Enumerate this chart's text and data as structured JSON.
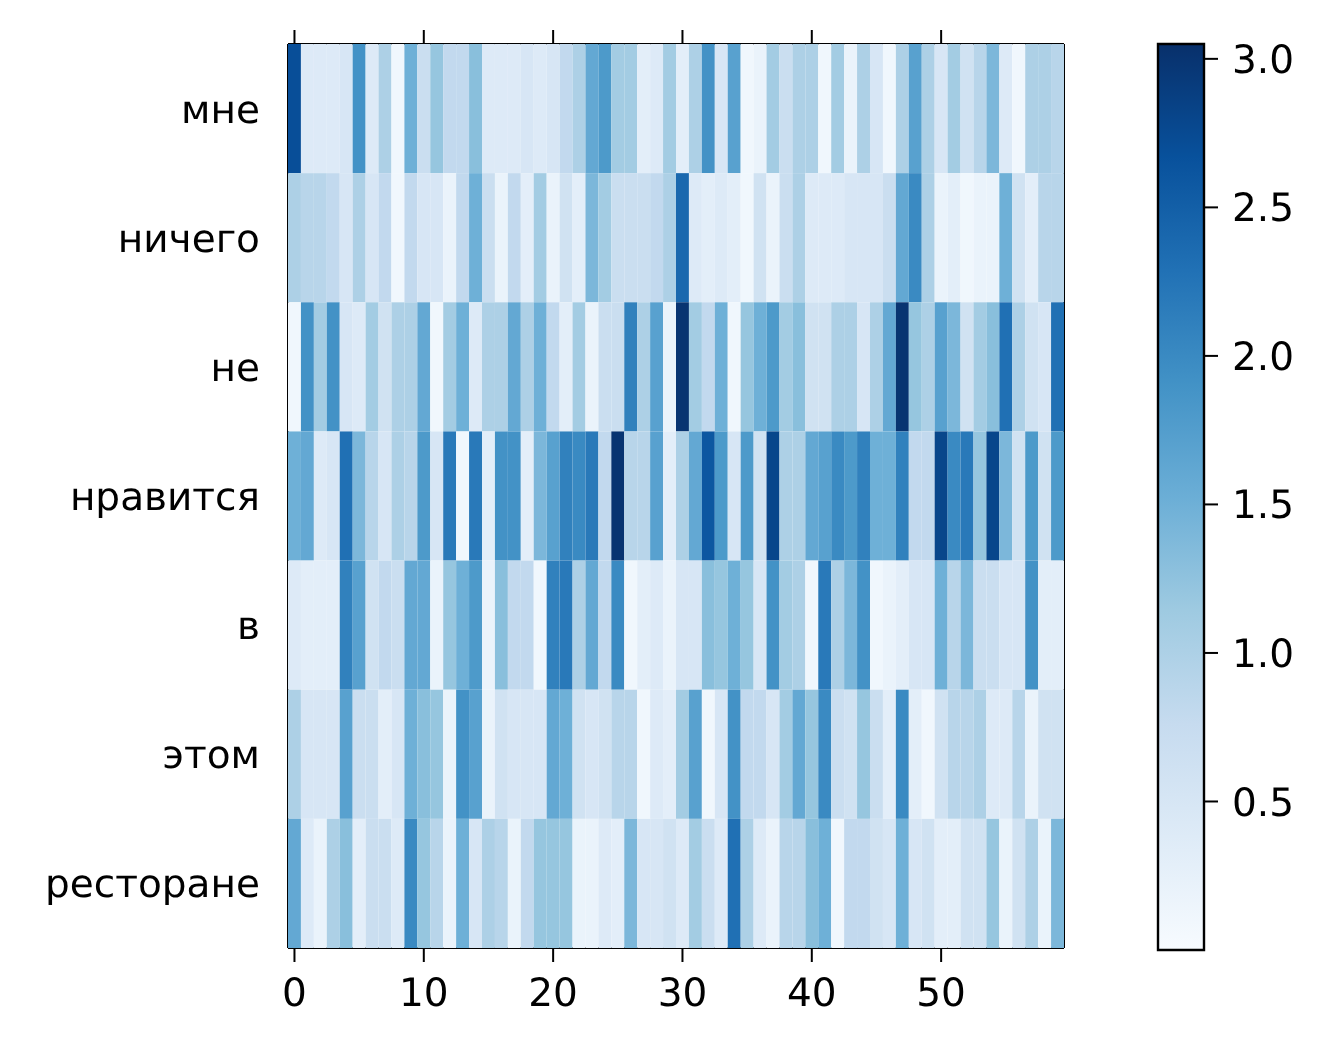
{
  "chart_data": {
    "type": "heatmap",
    "x": [
      0,
      1,
      2,
      3,
      4,
      5,
      6,
      7,
      8,
      9,
      10,
      11,
      12,
      13,
      14,
      15,
      16,
      17,
      18,
      19,
      20,
      21,
      22,
      23,
      24,
      25,
      26,
      27,
      28,
      29,
      30,
      31,
      32,
      33,
      34,
      35,
      36,
      37,
      38,
      39,
      40,
      41,
      42,
      43,
      44,
      45,
      46,
      47,
      48,
      49,
      50,
      51,
      52,
      53,
      54,
      55,
      56,
      57,
      58,
      59
    ],
    "xlim": [
      -0.5,
      59.5
    ],
    "xticks": [
      0,
      10,
      20,
      30,
      40,
      50
    ],
    "y_categories": [
      "мне",
      "ничего",
      "не",
      "нравится",
      "в",
      "этом",
      "ресторане"
    ],
    "cells": [
      [
        2.7,
        0.4,
        0.4,
        0.4,
        0.5,
        1.9,
        0.4,
        1.0,
        0.1,
        1.5,
        0.7,
        1.2,
        0.8,
        0.8,
        1.3,
        0.4,
        0.4,
        0.4,
        0.5,
        0.4,
        0.5,
        0.8,
        1.0,
        1.6,
        1.8,
        1.1,
        1.1,
        0.3,
        0.4,
        1.1,
        0.3,
        1.0,
        1.9,
        0.5,
        1.7,
        0.1,
        0.2,
        1.1,
        0.7,
        1.0,
        1.0,
        0.1,
        1.1,
        0.2,
        1.0,
        0.5,
        0.1,
        1.0,
        1.7,
        1.0,
        0.5,
        1.1,
        0.6,
        0.9,
        1.4,
        0.4,
        0.1,
        1.0,
        1.0,
        0.9
      ],
      [
        1.0,
        0.9,
        0.9,
        0.8,
        0.5,
        1.0,
        0.5,
        0.8,
        0.1,
        0.8,
        0.5,
        0.5,
        0.2,
        0.8,
        1.5,
        0.7,
        0.2,
        0.8,
        0.3,
        1.1,
        0.2,
        0.6,
        0.3,
        1.4,
        1.1,
        0.7,
        0.7,
        0.7,
        0.8,
        1.0,
        2.4,
        0.4,
        0.3,
        0.4,
        0.3,
        0.1,
        0.6,
        0.2,
        0.7,
        1.0,
        0.4,
        0.4,
        0.4,
        0.5,
        0.5,
        0.5,
        0.7,
        1.6,
        2.0,
        1.0,
        0.2,
        0.3,
        0.1,
        0.2,
        0.2,
        1.5,
        0.6,
        0.3,
        0.9,
        0.9
      ],
      [
        0.1,
        1.9,
        1.1,
        1.9,
        0.5,
        0.4,
        1.1,
        0.6,
        1.0,
        1.0,
        1.6,
        0.1,
        1.1,
        1.5,
        0.4,
        1.0,
        1.0,
        1.6,
        1.0,
        1.5,
        0.8,
        0.3,
        1.1,
        0.2,
        0.7,
        0.7,
        2.1,
        1.0,
        1.7,
        0.2,
        3.0,
        1.1,
        0.8,
        1.5,
        0.1,
        1.2,
        1.5,
        1.8,
        1.1,
        1.3,
        0.6,
        0.6,
        1.0,
        1.0,
        0.5,
        1.0,
        1.6,
        3.0,
        1.2,
        1.0,
        1.7,
        1.4,
        0.6,
        1.1,
        1.3,
        2.3,
        1.0,
        0.6,
        0.5,
        2.3
      ],
      [
        1.5,
        1.6,
        0.4,
        0.5,
        2.3,
        1.4,
        0.9,
        0.5,
        1.0,
        0.9,
        1.8,
        0.5,
        2.2,
        0.1,
        2.2,
        0.3,
        1.9,
        1.9,
        0.3,
        1.4,
        1.7,
        2.1,
        2.0,
        2.2,
        0.8,
        3.0,
        0.9,
        0.9,
        1.7,
        0.3,
        1.0,
        1.6,
        2.6,
        1.8,
        0.5,
        1.8,
        0.6,
        2.8,
        1.0,
        1.0,
        1.6,
        1.7,
        2.0,
        1.8,
        2.1,
        1.5,
        1.5,
        2.1,
        0.8,
        0.8,
        2.8,
        2.0,
        2.2,
        1.2,
        2.8,
        1.4,
        0.6,
        1.8,
        0.6,
        1.8
      ],
      [
        0.4,
        0.3,
        0.3,
        0.3,
        2.1,
        1.7,
        0.6,
        0.8,
        0.7,
        1.6,
        1.6,
        0.2,
        1.2,
        1.5,
        1.8,
        0.2,
        1.3,
        0.8,
        0.8,
        0.1,
        2.1,
        2.2,
        1.0,
        1.6,
        0.8,
        2.0,
        0.1,
        0.3,
        0.4,
        0.2,
        0.5,
        0.5,
        1.3,
        1.2,
        1.5,
        1.2,
        0.5,
        1.9,
        1.1,
        1.0,
        0.1,
        2.2,
        1.0,
        1.4,
        1.9,
        0.1,
        0.2,
        0.3,
        0.5,
        0.5,
        1.5,
        0.9,
        1.4,
        0.7,
        0.7,
        0.5,
        0.5,
        1.9,
        0.3,
        0.3
      ],
      [
        1.0,
        0.5,
        0.5,
        0.5,
        1.7,
        0.7,
        0.7,
        0.3,
        0.5,
        1.5,
        1.3,
        1.2,
        0.2,
        1.9,
        1.7,
        0.2,
        0.6,
        0.5,
        0.5,
        0.5,
        1.6,
        1.5,
        0.6,
        0.5,
        0.6,
        0.9,
        0.9,
        0.1,
        0.4,
        0.3,
        1.1,
        1.7,
        0.1,
        0.5,
        1.9,
        0.8,
        0.8,
        0.5,
        1.1,
        1.6,
        1.2,
        2.0,
        0.7,
        0.6,
        1.2,
        0.7,
        0.3,
        2.0,
        0.3,
        0.1,
        0.6,
        0.9,
        0.9,
        1.0,
        0.4,
        0.4,
        0.9,
        0.2,
        0.6,
        0.6
      ],
      [
        1.6,
        0.4,
        0.2,
        1.0,
        1.3,
        0.3,
        0.7,
        0.7,
        0.4,
        2.0,
        1.2,
        0.9,
        0.2,
        1.5,
        0.5,
        1.0,
        0.9,
        0.2,
        0.8,
        1.2,
        1.2,
        1.2,
        0.2,
        0.2,
        0.4,
        0.3,
        1.4,
        0.5,
        0.5,
        0.6,
        0.4,
        1.1,
        0.7,
        0.4,
        2.3,
        1.0,
        0.4,
        0.2,
        0.9,
        0.9,
        1.3,
        1.5,
        0.1,
        0.8,
        0.8,
        0.6,
        0.5,
        1.5,
        0.5,
        0.6,
        0.3,
        0.3,
        0.6,
        0.6,
        1.2,
        0.2,
        0.6,
        1.0,
        0.2,
        1.4
      ]
    ],
    "clim": [
      0,
      3.05
    ],
    "cticks": [
      0.5,
      {
        "value": 1,
        "label": "1.0"
      },
      1.5,
      {
        "value": 2,
        "label": "2.0"
      },
      2.5,
      {
        "value": 3,
        "label": "3.0"
      }
    ]
  }
}
